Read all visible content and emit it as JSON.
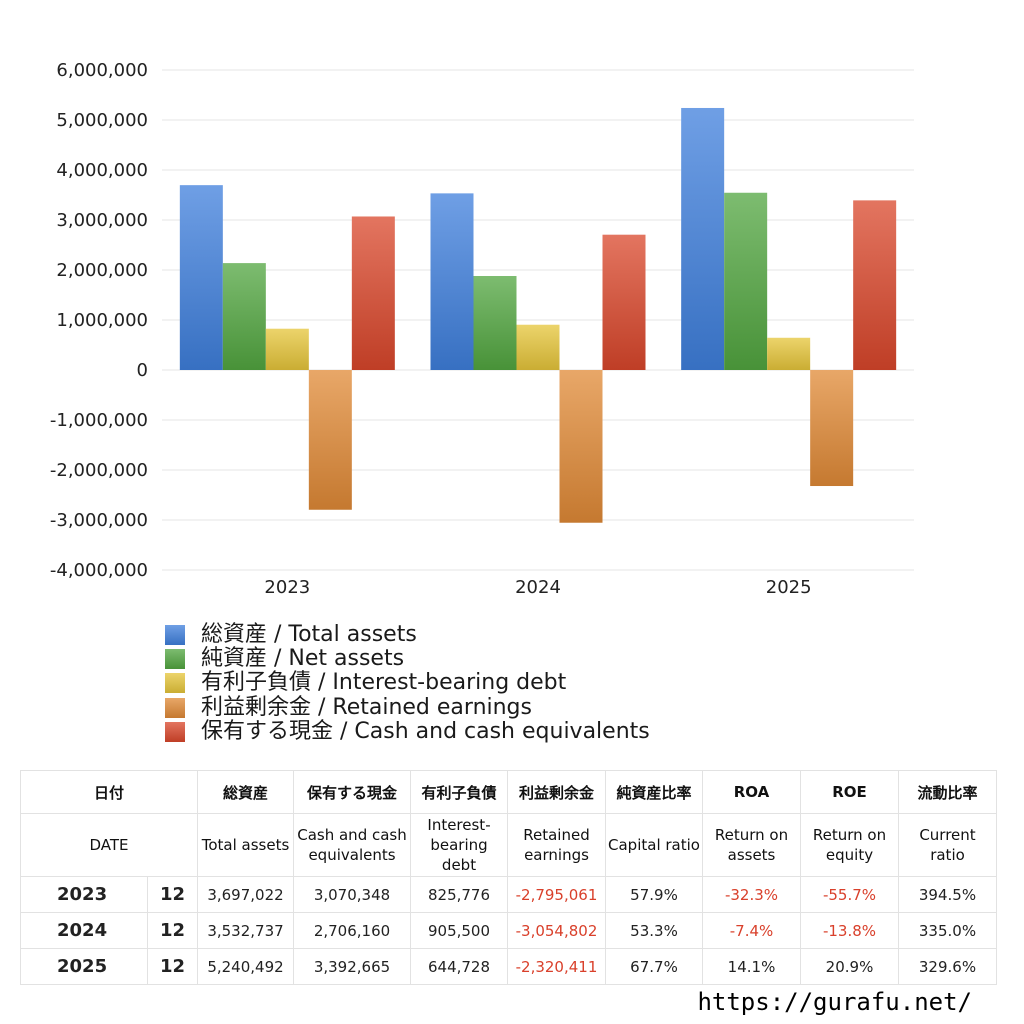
{
  "chart_data": {
    "type": "bar",
    "categories": [
      "2023",
      "2024",
      "2025"
    ],
    "series": [
      {
        "name": "総資産 / Total assets",
        "color": "#3f7fdc",
        "values": [
          3697022,
          3532737,
          5240492
        ]
      },
      {
        "name": "純資産 / Net assets",
        "color": "#52a640",
        "values": [
          2138000,
          1880000,
          3545000
        ]
      },
      {
        "name": "有利子負債 / Interest-bearing debt",
        "color": "#e6c53a",
        "values": [
          825776,
          905500,
          644728
        ]
      },
      {
        "name": "利益剰余金 / Retained earnings",
        "color": "#e08a36",
        "values": [
          -2795061,
          -3054802,
          -2320411
        ]
      },
      {
        "name": "保有する現金 /  Cash and cash equivalents",
        "color": "#d9472b",
        "values": [
          3070348,
          2706160,
          3392665
        ]
      }
    ],
    "ylim": [
      -4000000,
      6000000
    ],
    "yticks": [
      "6,000,000",
      "5,000,000",
      "4,000,000",
      "3,000,000",
      "2,000,000",
      "1,000,000",
      "0",
      "-1,000,000",
      "-2,000,000",
      "-3,000,000",
      "-4,000,000"
    ],
    "ytick_values": [
      6000000,
      5000000,
      4000000,
      3000000,
      2000000,
      1000000,
      0,
      -1000000,
      -2000000,
      -3000000,
      -4000000
    ],
    "grid": true,
    "legend_position": "bottom-left"
  },
  "table": {
    "header_jp": [
      "日付",
      "",
      "総資産",
      "保有する現金",
      "有利子負債",
      "利益剰余金",
      "純資産比率",
      "ROA",
      "ROE",
      "流動比率"
    ],
    "header_en": [
      "DATE",
      "",
      "Total assets",
      "Cash and cash\nequivalents",
      "Interest-\nbearing\ndebt",
      "Retained\nearnings",
      "Capital ratio",
      "Return on\nassets",
      "Return on\nequity",
      "Current\nratio"
    ],
    "rows": [
      {
        "year": "2023",
        "month": "12",
        "cells": [
          "3,697,022",
          "3,070,348",
          "825,776",
          "-2,795,061",
          "57.9%",
          "-32.3%",
          "-55.7%",
          "394.5%"
        ]
      },
      {
        "year": "2024",
        "month": "12",
        "cells": [
          "3,532,737",
          "2,706,160",
          "905,500",
          "-3,054,802",
          "53.3%",
          "-7.4%",
          "-13.8%",
          "335.0%"
        ]
      },
      {
        "year": "2025",
        "month": "12",
        "cells": [
          "5,240,492",
          "3,392,665",
          "644,728",
          "-2,320,411",
          "67.7%",
          "14.1%",
          "20.9%",
          "329.6%"
        ]
      }
    ]
  },
  "footer": {
    "url": "https://gurafu.net/"
  }
}
